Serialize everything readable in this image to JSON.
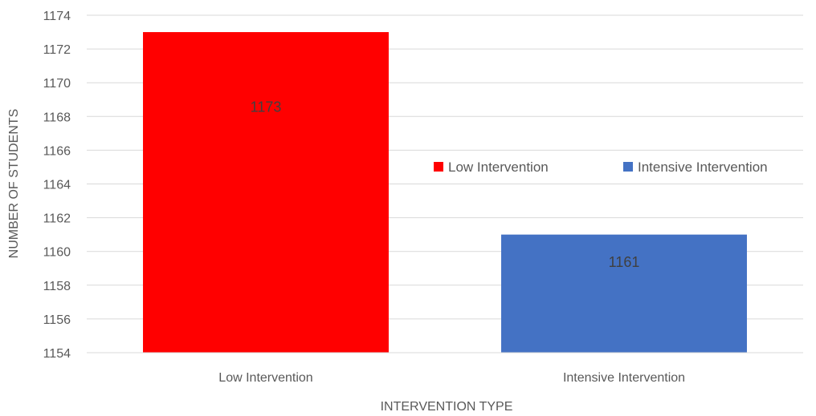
{
  "chart_data": {
    "type": "bar",
    "title": "",
    "xlabel": "INTERVENTION TYPE",
    "ylabel": "NUMBER OF STUDENTS",
    "categories": [
      "Low Intervention",
      "Intensive Intervention"
    ],
    "series": [
      {
        "name": "Low Intervention",
        "color": "#ff0000",
        "values": [
          1173,
          null
        ]
      },
      {
        "name": "Intensive Intervention",
        "color": "#4472c4",
        "values": [
          null,
          1161
        ]
      }
    ],
    "values": [
      1173,
      1161
    ],
    "data_labels": [
      "1173",
      "1161"
    ],
    "ylim": [
      1154,
      1174
    ],
    "y_ticks": [
      1154,
      1156,
      1158,
      1160,
      1162,
      1164,
      1166,
      1168,
      1170,
      1172,
      1174
    ],
    "y_tick_labels": [
      "1154",
      "1156",
      "1158",
      "1160",
      "1162",
      "1164",
      "1166",
      "1168",
      "1170",
      "1172",
      "1174"
    ],
    "grid": true,
    "legend": {
      "position": "right",
      "entries": [
        {
          "label": "Low Intervention",
          "color": "#ff0000"
        },
        {
          "label": "Intensive Intervention",
          "color": "#4472c4"
        }
      ]
    }
  }
}
